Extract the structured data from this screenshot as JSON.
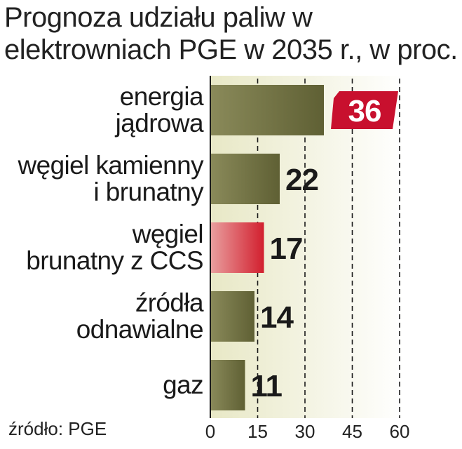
{
  "chart_data": {
    "type": "bar",
    "orientation": "horizontal",
    "title": "Prognoza udziału paliw w elektrowniach PGE w 2035 r., w proc.",
    "categories": [
      [
        "energia",
        "jądrowa"
      ],
      [
        "węgiel kamienny",
        "i brunatny"
      ],
      [
        "węgiel",
        "brunatny z CCS"
      ],
      [
        "źródła",
        "odnawialne"
      ],
      [
        "gaz"
      ]
    ],
    "values": [
      36,
      22,
      17,
      14,
      11
    ],
    "value_labels": [
      "36",
      "22",
      "17",
      "14",
      "11"
    ],
    "highlighted": [
      false,
      false,
      true,
      false,
      false
    ],
    "boxed_value_index": 0,
    "xlim": [
      0,
      60
    ],
    "xticks": [
      0,
      15,
      30,
      45,
      60
    ],
    "xtick_labels": [
      "0",
      "15",
      "30",
      "45",
      "60"
    ],
    "grid": "dashed vertical",
    "source": "źródło: PGE"
  },
  "colors": {
    "bar": "#6e6f3f",
    "bar_highlight": "#d9303a",
    "box": "#c8102e",
    "plot_bg_left": "#e8e8c6",
    "plot_bg_right": "#ffffff",
    "grid": "#1a1a1a"
  }
}
